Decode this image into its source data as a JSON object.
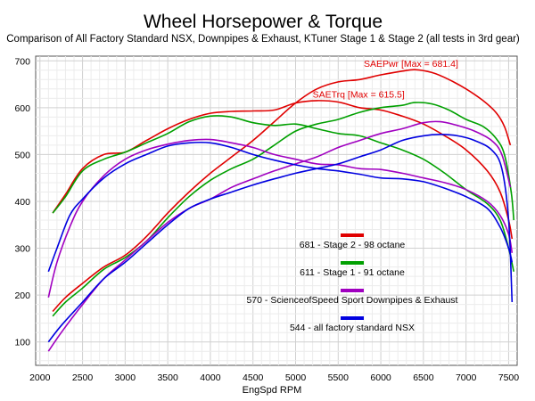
{
  "chart_data": {
    "type": "line",
    "title": "Wheel Horsepower & Torque",
    "subtitle": "Comparison of All Factory Standard NSX, Downpipes & Exhaust, KTuner Stage 1 & Stage 2 (all tests in 3rd gear)",
    "xlabel": "EngSpd RPM",
    "ylabel": "",
    "xlim": [
      1950,
      7600
    ],
    "ylim": [
      50,
      710
    ],
    "xticks": [
      2000,
      2500,
      3000,
      3500,
      4000,
      4500,
      5000,
      5500,
      6000,
      6500,
      7000,
      7500
    ],
    "yticks": [
      100,
      200,
      300,
      400,
      500,
      600,
      700
    ],
    "grid": true,
    "legend": [
      {
        "label": "681 - Stage 2 - 98 octane",
        "color": "#e00000"
      },
      {
        "label": "611 - Stage 1 - 91 octane",
        "color": "#00a000"
      },
      {
        "label": "570 - ScienceofSpeed Sport Downpipes & Exhaust",
        "color": "#a000c0"
      },
      {
        "label": "544 - all factory standard NSX",
        "color": "#0000e0"
      }
    ],
    "annotations": [
      {
        "text": "SAEPwr [Max = 681.4]",
        "x": 5800,
        "y": 687,
        "color": "#e00000"
      },
      {
        "text": "SAETrq [Max = 615.5]",
        "x": 5200,
        "y": 622,
        "color": "#e00000"
      }
    ],
    "series": [
      {
        "color": "#e00000",
        "kind": "power",
        "points": [
          [
            2150,
            165
          ],
          [
            2300,
            195
          ],
          [
            2500,
            225
          ],
          [
            2750,
            260
          ],
          [
            3000,
            285
          ],
          [
            3250,
            325
          ],
          [
            3500,
            375
          ],
          [
            3750,
            420
          ],
          [
            4000,
            460
          ],
          [
            4250,
            495
          ],
          [
            4500,
            530
          ],
          [
            4750,
            570
          ],
          [
            5000,
            610
          ],
          [
            5250,
            640
          ],
          [
            5500,
            655
          ],
          [
            5750,
            660
          ],
          [
            6000,
            670
          ],
          [
            6250,
            678
          ],
          [
            6400,
            681
          ],
          [
            6600,
            675
          ],
          [
            6800,
            660
          ],
          [
            7000,
            640
          ],
          [
            7200,
            615
          ],
          [
            7350,
            590
          ],
          [
            7450,
            560
          ],
          [
            7520,
            520
          ]
        ]
      },
      {
        "color": "#e00000",
        "kind": "torque",
        "points": [
          [
            2150,
            375
          ],
          [
            2300,
            415
          ],
          [
            2500,
            470
          ],
          [
            2750,
            500
          ],
          [
            3000,
            505
          ],
          [
            3250,
            530
          ],
          [
            3500,
            555
          ],
          [
            3750,
            575
          ],
          [
            4000,
            588
          ],
          [
            4250,
            592
          ],
          [
            4500,
            593
          ],
          [
            4750,
            595
          ],
          [
            5000,
            610
          ],
          [
            5250,
            615
          ],
          [
            5500,
            612
          ],
          [
            5750,
            600
          ],
          [
            6000,
            595
          ],
          [
            6250,
            582
          ],
          [
            6500,
            565
          ],
          [
            6750,
            540
          ],
          [
            7000,
            510
          ],
          [
            7250,
            465
          ],
          [
            7400,
            420
          ],
          [
            7500,
            360
          ],
          [
            7540,
            320
          ]
        ]
      },
      {
        "color": "#00a000",
        "kind": "power",
        "points": [
          [
            2150,
            155
          ],
          [
            2300,
            185
          ],
          [
            2500,
            215
          ],
          [
            2750,
            255
          ],
          [
            3000,
            280
          ],
          [
            3250,
            315
          ],
          [
            3500,
            365
          ],
          [
            3750,
            410
          ],
          [
            4000,
            445
          ],
          [
            4250,
            470
          ],
          [
            4500,
            490
          ],
          [
            4750,
            520
          ],
          [
            5000,
            550
          ],
          [
            5250,
            565
          ],
          [
            5500,
            575
          ],
          [
            5750,
            590
          ],
          [
            6000,
            600
          ],
          [
            6250,
            605
          ],
          [
            6400,
            611
          ],
          [
            6600,
            608
          ],
          [
            6800,
            595
          ],
          [
            7000,
            575
          ],
          [
            7200,
            560
          ],
          [
            7350,
            535
          ],
          [
            7450,
            500
          ],
          [
            7530,
            420
          ],
          [
            7560,
            360
          ]
        ]
      },
      {
        "color": "#00a000",
        "kind": "torque",
        "points": [
          [
            2150,
            375
          ],
          [
            2300,
            410
          ],
          [
            2500,
            465
          ],
          [
            2750,
            490
          ],
          [
            3000,
            505
          ],
          [
            3250,
            525
          ],
          [
            3500,
            545
          ],
          [
            3750,
            570
          ],
          [
            4000,
            582
          ],
          [
            4250,
            580
          ],
          [
            4500,
            568
          ],
          [
            4750,
            562
          ],
          [
            5000,
            565
          ],
          [
            5250,
            555
          ],
          [
            5500,
            545
          ],
          [
            5750,
            540
          ],
          [
            6000,
            525
          ],
          [
            6250,
            510
          ],
          [
            6500,
            490
          ],
          [
            6750,
            460
          ],
          [
            7000,
            425
          ],
          [
            7250,
            395
          ],
          [
            7400,
            360
          ],
          [
            7500,
            300
          ],
          [
            7560,
            250
          ]
        ]
      },
      {
        "color": "#a000c0",
        "kind": "power",
        "points": [
          [
            2100,
            80
          ],
          [
            2250,
            120
          ],
          [
            2500,
            180
          ],
          [
            2750,
            235
          ],
          [
            3000,
            275
          ],
          [
            3250,
            315
          ],
          [
            3500,
            355
          ],
          [
            3750,
            385
          ],
          [
            4000,
            405
          ],
          [
            4250,
            430
          ],
          [
            4500,
            448
          ],
          [
            4750,
            465
          ],
          [
            5000,
            480
          ],
          [
            5250,
            495
          ],
          [
            5500,
            515
          ],
          [
            5750,
            530
          ],
          [
            6000,
            545
          ],
          [
            6250,
            555
          ],
          [
            6500,
            568
          ],
          [
            6700,
            570
          ],
          [
            6900,
            562
          ],
          [
            7100,
            550
          ],
          [
            7300,
            530
          ],
          [
            7420,
            500
          ],
          [
            7520,
            430
          ]
        ]
      },
      {
        "color": "#a000c0",
        "kind": "torque",
        "points": [
          [
            2100,
            195
          ],
          [
            2200,
            270
          ],
          [
            2350,
            345
          ],
          [
            2500,
            400
          ],
          [
            2750,
            455
          ],
          [
            3000,
            490
          ],
          [
            3250,
            510
          ],
          [
            3500,
            522
          ],
          [
            3750,
            530
          ],
          [
            4000,
            532
          ],
          [
            4250,
            525
          ],
          [
            4500,
            515
          ],
          [
            4750,
            500
          ],
          [
            5000,
            490
          ],
          [
            5250,
            480
          ],
          [
            5500,
            478
          ],
          [
            5750,
            470
          ],
          [
            6000,
            468
          ],
          [
            6250,
            460
          ],
          [
            6500,
            450
          ],
          [
            6750,
            440
          ],
          [
            7000,
            425
          ],
          [
            7250,
            400
          ],
          [
            7400,
            370
          ],
          [
            7500,
            330
          ],
          [
            7540,
            290
          ]
        ]
      },
      {
        "color": "#0000e0",
        "kind": "power",
        "points": [
          [
            2100,
            100
          ],
          [
            2250,
            135
          ],
          [
            2500,
            185
          ],
          [
            2750,
            235
          ],
          [
            3000,
            270
          ],
          [
            3250,
            310
          ],
          [
            3500,
            350
          ],
          [
            3750,
            385
          ],
          [
            4000,
            405
          ],
          [
            4250,
            420
          ],
          [
            4500,
            435
          ],
          [
            4750,
            448
          ],
          [
            5000,
            460
          ],
          [
            5250,
            470
          ],
          [
            5500,
            480
          ],
          [
            5750,
            495
          ],
          [
            6000,
            510
          ],
          [
            6250,
            530
          ],
          [
            6500,
            540
          ],
          [
            6700,
            543
          ],
          [
            6900,
            540
          ],
          [
            7100,
            530
          ],
          [
            7300,
            510
          ],
          [
            7420,
            470
          ],
          [
            7500,
            360
          ],
          [
            7540,
            185
          ]
        ]
      },
      {
        "color": "#0000e0",
        "kind": "torque",
        "points": [
          [
            2100,
            250
          ],
          [
            2200,
            300
          ],
          [
            2350,
            370
          ],
          [
            2500,
            405
          ],
          [
            2750,
            450
          ],
          [
            3000,
            480
          ],
          [
            3250,
            500
          ],
          [
            3500,
            518
          ],
          [
            3750,
            525
          ],
          [
            4000,
            525
          ],
          [
            4250,
            515
          ],
          [
            4500,
            500
          ],
          [
            4750,
            488
          ],
          [
            5000,
            478
          ],
          [
            5250,
            470
          ],
          [
            5500,
            465
          ],
          [
            5750,
            458
          ],
          [
            6000,
            450
          ],
          [
            6250,
            448
          ],
          [
            6500,
            442
          ],
          [
            6750,
            428
          ],
          [
            7000,
            410
          ],
          [
            7250,
            385
          ],
          [
            7400,
            345
          ],
          [
            7500,
            300
          ],
          [
            7540,
            270
          ]
        ]
      }
    ]
  }
}
